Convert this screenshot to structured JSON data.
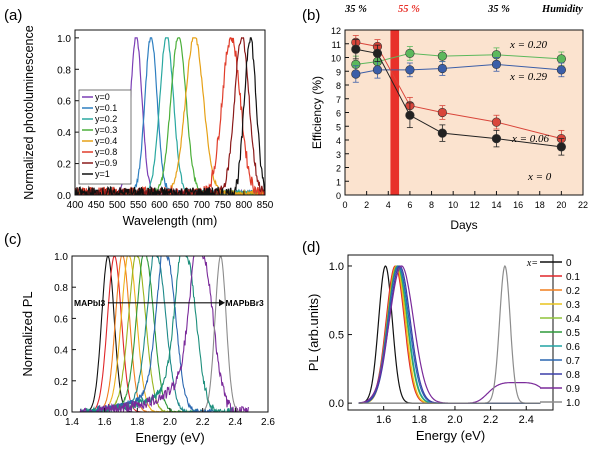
{
  "chart_data": [
    {
      "panel": "(a)",
      "type": "line",
      "xlabel": "Wavelength (nm)",
      "ylabel": "Normalized photoluminescence",
      "xlim": [
        400,
        850
      ],
      "ylim": [
        0,
        1.05
      ],
      "xticks": [
        400,
        450,
        500,
        550,
        600,
        650,
        700,
        750,
        800,
        850
      ],
      "yticks": [
        0.0,
        0.2,
        0.4,
        0.6,
        0.8,
        1.0
      ],
      "legend_position": "left-bottom",
      "series": [
        {
          "name": "y=0",
          "color": "#7b3fb5",
          "peak": 545,
          "fwhm": 32,
          "noise": 0.015
        },
        {
          "name": "y=0.1",
          "color": "#2e7fc0",
          "peak": 580,
          "fwhm": 34,
          "noise": 0.02
        },
        {
          "name": "y=0.2",
          "color": "#2aa8a0",
          "peak": 617,
          "fwhm": 38,
          "noise": 0.015
        },
        {
          "name": "y=0.3",
          "color": "#4caf3a",
          "peak": 645,
          "fwhm": 42,
          "noise": 0.015
        },
        {
          "name": "y=0.4",
          "color": "#e6a117",
          "peak": 683,
          "fwhm": 50,
          "noise": 0.015
        },
        {
          "name": "y=0.8",
          "color": "#e03c2a",
          "peak": 770,
          "fwhm": 50,
          "noise": 0.04
        },
        {
          "name": "y=0.9",
          "color": "#8b1a1a",
          "peak": 795,
          "fwhm": 40,
          "noise": 0.03
        },
        {
          "name": "y=1",
          "color": "#111111",
          "peak": 815,
          "fwhm": 32,
          "noise": 0.04
        }
      ]
    },
    {
      "panel": "(b)",
      "type": "line",
      "xlabel": "Days",
      "ylabel": "Efficiency (%)",
      "xlim": [
        0,
        22
      ],
      "ylim": [
        0,
        12
      ],
      "xticks": [
        0,
        2,
        4,
        6,
        8,
        10,
        12,
        14,
        16,
        18,
        20,
        22
      ],
      "yticks": [
        0,
        1,
        2,
        3,
        4,
        5,
        6,
        7,
        8,
        9,
        10,
        11,
        12
      ],
      "background": "#fbe3cf",
      "humidity_band": {
        "x0": 4.2,
        "x1": 5.0,
        "color": "#e8312a"
      },
      "annotations": {
        "humidity_left": "35 %",
        "humidity_mid": "55 %",
        "humidity_right": "35 %",
        "humidity_title": "Humidity"
      },
      "series": [
        {
          "name": "x = 0.20",
          "color": "#5cb85c",
          "x": [
            1,
            3,
            6,
            9,
            14,
            20
          ],
          "y": [
            9.5,
            9.7,
            10.3,
            10.1,
            10.2,
            9.9
          ],
          "err": [
            0.6,
            0.5,
            0.5,
            0.4,
            0.5,
            0.5
          ]
        },
        {
          "name": "x = 0.29",
          "color": "#3b5ea8",
          "x": [
            1,
            3,
            6,
            9,
            14,
            20
          ],
          "y": [
            8.8,
            9.1,
            9.1,
            9.2,
            9.5,
            9.1
          ],
          "err": [
            0.6,
            0.6,
            0.5,
            0.5,
            0.5,
            0.5
          ]
        },
        {
          "name": "x = 0.06",
          "color": "#d9453a",
          "x": [
            1,
            3,
            6,
            9,
            14,
            20
          ],
          "y": [
            11.1,
            10.8,
            6.5,
            6.0,
            5.3,
            4.1
          ],
          "err": [
            0.5,
            0.5,
            0.6,
            0.5,
            0.5,
            0.6
          ]
        },
        {
          "name": "x = 0",
          "color": "#222222",
          "x": [
            1,
            3,
            6,
            9,
            14,
            20
          ],
          "y": [
            10.6,
            10.3,
            5.8,
            4.5,
            4.1,
            3.5
          ],
          "err": [
            0.7,
            0.6,
            0.9,
            0.6,
            0.6,
            0.6
          ]
        }
      ]
    },
    {
      "panel": "(c)",
      "type": "line",
      "xlabel": "Energy (eV)",
      "ylabel": "Normalized PL",
      "xlim": [
        1.4,
        2.6
      ],
      "ylim": [
        0,
        1.0
      ],
      "xticks": [
        1.4,
        1.6,
        1.8,
        2.0,
        2.2,
        2.4,
        2.6
      ],
      "yticks": [
        0.0,
        0.2,
        0.4,
        0.6,
        0.8,
        1.0
      ],
      "arrow_left_label": "MAPbI3",
      "arrow_right_label": "MAPbBr3",
      "series": [
        {
          "color": "#111111",
          "peak": 1.62,
          "fwhm": 0.09,
          "tail": 0
        },
        {
          "color": "#e0262a",
          "peak": 1.66,
          "fwhm": 0.1,
          "tail": 0
        },
        {
          "color": "#f07f1f",
          "peak": 1.71,
          "fwhm": 0.1,
          "tail": 0.02
        },
        {
          "color": "#efb21d",
          "peak": 1.75,
          "fwhm": 0.11,
          "tail": 0.03
        },
        {
          "color": "#9ab51f",
          "peak": 1.8,
          "fwhm": 0.12,
          "tail": 0.05
        },
        {
          "color": "#2e9a3a",
          "peak": 1.85,
          "fwhm": 0.12,
          "tail": 0.08
        },
        {
          "color": "#1f8a8a",
          "peak": 1.92,
          "fwhm": 0.13,
          "tail": 0.12
        },
        {
          "color": "#2a67b0",
          "peak": 1.98,
          "fwhm": 0.13,
          "tail": 0.2
        },
        {
          "color": "#1d8f7c",
          "peak": 2.1,
          "fwhm": 0.14,
          "tail": 0.28
        },
        {
          "color": "#7a2a9a",
          "peak": 2.2,
          "fwhm": 0.15,
          "tail": 0.4
        },
        {
          "color": "#8c8c8c",
          "peak": 2.31,
          "fwhm": 0.08,
          "tail": 0
        }
      ]
    },
    {
      "panel": "(d)",
      "type": "line",
      "xlabel": "Energy (eV)",
      "ylabel": "PL (arb.units)",
      "xlim": [
        1.4,
        2.55
      ],
      "ylim": [
        -0.05,
        1.08
      ],
      "xticks": [
        1.6,
        1.8,
        2.0,
        2.2,
        2.4
      ],
      "yticks": [
        0.0,
        0.5,
        1.0
      ],
      "legend_title": "x=",
      "legend_position": "right",
      "series": [
        {
          "name": "0",
          "color": "#111111",
          "peak": 1.61,
          "fwhm": 0.09
        },
        {
          "name": "0.1",
          "color": "#e0262a",
          "peak": 1.665,
          "fwhm": 0.12
        },
        {
          "name": "0.2",
          "color": "#f07f1f",
          "peak": 1.67,
          "fwhm": 0.12
        },
        {
          "name": "0.3",
          "color": "#e8c31d",
          "peak": 1.672,
          "fwhm": 0.12
        },
        {
          "name": "0.4",
          "color": "#8fc43a",
          "peak": 1.675,
          "fwhm": 0.13
        },
        {
          "name": "0.5",
          "color": "#2e9a3a",
          "peak": 1.678,
          "fwhm": 0.13
        },
        {
          "name": "0.6",
          "color": "#21a3a3",
          "peak": 1.68,
          "fwhm": 0.13
        },
        {
          "name": "0.7",
          "color": "#2a67b0",
          "peak": 1.683,
          "fwhm": 0.14
        },
        {
          "name": "0.8",
          "color": "#3b3fa8",
          "peak": 1.69,
          "fwhm": 0.14
        },
        {
          "name": "0.9",
          "color": "#7a2a9a",
          "peak": 1.7,
          "fwhm": 0.16
        },
        {
          "name": "1.0",
          "color": "#8c8c8c",
          "peak": 2.28,
          "fwhm": 0.07
        }
      ]
    }
  ]
}
